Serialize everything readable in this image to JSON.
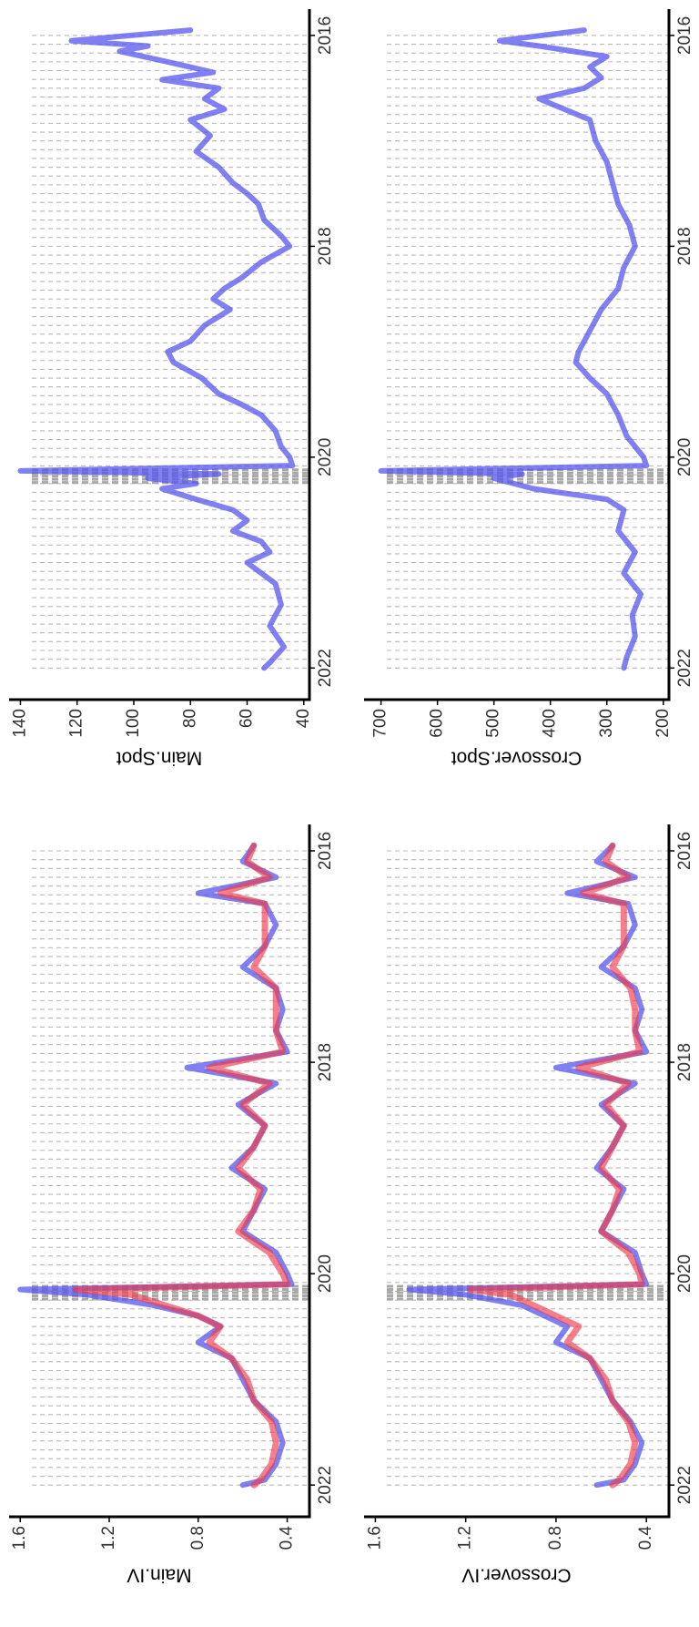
{
  "colors": {
    "blue_series": "#5555ee",
    "red_series": "#ee3a4a",
    "gridline": "#b8b8b8",
    "axis": "#000000",
    "background": "#ffffff"
  },
  "chart_data": [
    {
      "panel": "top-left",
      "type": "line",
      "ylabel": "Main.Spot",
      "xlabel": "",
      "xlim": [
        2015.75,
        2022.3
      ],
      "ylim": [
        38,
        144
      ],
      "x_ticks": [
        "2016",
        "2018",
        "2020",
        "2022"
      ],
      "y_ticks": [
        "140",
        "120",
        "100",
        "80",
        "60",
        "40"
      ],
      "grid": "vertical dashed lines",
      "series": [
        {
          "color": "#5555ee",
          "x": [
            2015.95,
            2016.05,
            2016.1,
            2016.15,
            2016.25,
            2016.35,
            2016.42,
            2016.5,
            2016.6,
            2016.7,
            2016.8,
            2016.95,
            2017.1,
            2017.25,
            2017.4,
            2017.5,
            2017.6,
            2017.75,
            2017.9,
            2018.0,
            2018.15,
            2018.3,
            2018.4,
            2018.5,
            2018.6,
            2018.75,
            2018.9,
            2019.0,
            2019.1,
            2019.25,
            2019.4,
            2019.5,
            2019.6,
            2019.75,
            2019.9,
            2020.0,
            2020.08,
            2020.13,
            2020.16,
            2020.2,
            2020.25,
            2020.3,
            2020.4,
            2020.5,
            2020.6,
            2020.7,
            2020.8,
            2020.9,
            2021.0,
            2021.2,
            2021.4,
            2021.6,
            2021.8,
            2021.95,
            2022.0
          ],
          "y": [
            80,
            122,
            95,
            105,
            88,
            72,
            90,
            70,
            75,
            68,
            80,
            73,
            78,
            70,
            65,
            60,
            56,
            54,
            48,
            45,
            55,
            62,
            68,
            72,
            66,
            75,
            80,
            88,
            86,
            76,
            70,
            62,
            55,
            50,
            48,
            45,
            44,
            140,
            70,
            95,
            78,
            90,
            78,
            65,
            60,
            65,
            55,
            52,
            60,
            50,
            48,
            52,
            47,
            52,
            54
          ]
        }
      ]
    },
    {
      "panel": "top-right",
      "type": "line",
      "ylabel": "Crossover.Spot",
      "xlabel": "",
      "xlim": [
        2015.75,
        2022.3
      ],
      "ylim": [
        190,
        730
      ],
      "x_ticks": [
        "2016",
        "2018",
        "2020",
        "2022"
      ],
      "y_ticks": [
        "700",
        "600",
        "500",
        "400",
        "300",
        "200"
      ],
      "grid": "vertical dashed lines",
      "series": [
        {
          "color": "#5555ee",
          "x": [
            2015.95,
            2016.05,
            2016.1,
            2016.2,
            2016.3,
            2016.4,
            2016.5,
            2016.6,
            2016.8,
            2017.0,
            2017.2,
            2017.4,
            2017.6,
            2017.8,
            2018.0,
            2018.2,
            2018.4,
            2018.6,
            2018.8,
            2019.0,
            2019.1,
            2019.25,
            2019.4,
            2019.6,
            2019.8,
            2020.0,
            2020.08,
            2020.13,
            2020.16,
            2020.2,
            2020.3,
            2020.4,
            2020.5,
            2020.7,
            2020.9,
            2021.1,
            2021.3,
            2021.5,
            2021.7,
            2021.9,
            2022.0
          ],
          "y": [
            340,
            490,
            420,
            300,
            330,
            310,
            340,
            420,
            330,
            320,
            300,
            290,
            280,
            260,
            250,
            270,
            280,
            310,
            330,
            350,
            355,
            330,
            300,
            280,
            265,
            235,
            230,
            700,
            450,
            500,
            430,
            300,
            270,
            280,
            250,
            270,
            240,
            255,
            250,
            265,
            270
          ]
        }
      ]
    },
    {
      "panel": "bottom-left",
      "type": "line",
      "ylabel": "Main.IV",
      "xlabel": "",
      "xlim": [
        2015.75,
        2022.3
      ],
      "ylim": [
        0.3,
        1.65
      ],
      "x_ticks": [
        "2016",
        "2018",
        "2020",
        "2022"
      ],
      "y_ticks": [
        "1.6",
        "1.2",
        "0.8",
        "0.4"
      ],
      "grid": "vertical dashed lines",
      "series": [
        {
          "color": "#5555ee",
          "x": [
            2015.95,
            2016.1,
            2016.25,
            2016.4,
            2016.5,
            2016.7,
            2016.9,
            2017.1,
            2017.3,
            2017.5,
            2017.7,
            2017.9,
            2018.05,
            2018.2,
            2018.4,
            2018.6,
            2018.8,
            2019.0,
            2019.2,
            2019.4,
            2019.6,
            2019.8,
            2020.0,
            2020.1,
            2020.15,
            2020.2,
            2020.3,
            2020.4,
            2020.5,
            2020.65,
            2020.8,
            2021.0,
            2021.2,
            2021.4,
            2021.6,
            2021.8,
            2021.95,
            2022.0
          ],
          "y": [
            0.55,
            0.6,
            0.45,
            0.8,
            0.5,
            0.45,
            0.5,
            0.6,
            0.45,
            0.42,
            0.45,
            0.4,
            0.85,
            0.45,
            0.62,
            0.5,
            0.55,
            0.65,
            0.5,
            0.55,
            0.6,
            0.45,
            0.4,
            0.38,
            1.6,
            1.3,
            1.0,
            0.8,
            0.7,
            0.8,
            0.65,
            0.6,
            0.55,
            0.45,
            0.42,
            0.45,
            0.5,
            0.6
          ]
        },
        {
          "color": "#ee3a4a",
          "x": [
            2015.95,
            2016.1,
            2016.25,
            2016.4,
            2016.5,
            2016.7,
            2016.9,
            2017.1,
            2017.3,
            2017.5,
            2017.7,
            2017.9,
            2018.05,
            2018.2,
            2018.4,
            2018.6,
            2018.8,
            2019.0,
            2019.2,
            2019.4,
            2019.6,
            2019.8,
            2020.0,
            2020.1,
            2020.15,
            2020.2,
            2020.3,
            2020.4,
            2020.5,
            2020.65,
            2020.8,
            2021.0,
            2021.2,
            2021.4,
            2021.6,
            2021.8,
            2021.95,
            2022.0
          ],
          "y": [
            0.55,
            0.58,
            0.48,
            0.7,
            0.5,
            0.5,
            0.5,
            0.55,
            0.45,
            0.45,
            0.45,
            0.42,
            0.75,
            0.48,
            0.6,
            0.5,
            0.55,
            0.62,
            0.52,
            0.55,
            0.62,
            0.48,
            0.42,
            0.4,
            1.35,
            1.1,
            0.95,
            0.8,
            0.7,
            0.75,
            0.65,
            0.58,
            0.55,
            0.47,
            0.45,
            0.47,
            0.52,
            0.55
          ]
        }
      ]
    },
    {
      "panel": "bottom-right",
      "type": "line",
      "ylabel": "Crossover.IV",
      "xlabel": "",
      "xlim": [
        2015.75,
        2022.3
      ],
      "ylim": [
        0.3,
        1.65
      ],
      "x_ticks": [
        "2016",
        "2018",
        "2020",
        "2022"
      ],
      "y_ticks": [
        "1.6",
        "1.2",
        "0.8",
        "0.4"
      ],
      "grid": "vertical dashed lines",
      "series": [
        {
          "color": "#5555ee",
          "x": [
            2015.95,
            2016.1,
            2016.25,
            2016.4,
            2016.5,
            2016.7,
            2016.9,
            2017.1,
            2017.3,
            2017.5,
            2017.7,
            2017.9,
            2018.05,
            2018.2,
            2018.4,
            2018.6,
            2018.8,
            2019.0,
            2019.2,
            2019.4,
            2019.6,
            2019.8,
            2020.0,
            2020.1,
            2020.15,
            2020.2,
            2020.3,
            2020.4,
            2020.5,
            2020.65,
            2020.8,
            2021.0,
            2021.2,
            2021.4,
            2021.6,
            2021.8,
            2021.95,
            2022.0
          ],
          "y": [
            0.55,
            0.62,
            0.45,
            0.75,
            0.48,
            0.45,
            0.5,
            0.6,
            0.45,
            0.42,
            0.45,
            0.4,
            0.8,
            0.45,
            0.6,
            0.5,
            0.55,
            0.62,
            0.5,
            0.55,
            0.6,
            0.45,
            0.42,
            0.4,
            1.45,
            1.2,
            0.95,
            0.85,
            0.75,
            0.8,
            0.65,
            0.6,
            0.55,
            0.47,
            0.42,
            0.45,
            0.5,
            0.62
          ]
        },
        {
          "color": "#ee3a4a",
          "x": [
            2015.95,
            2016.1,
            2016.25,
            2016.4,
            2016.5,
            2016.7,
            2016.9,
            2017.1,
            2017.3,
            2017.5,
            2017.7,
            2017.9,
            2018.05,
            2018.2,
            2018.4,
            2018.6,
            2018.8,
            2019.0,
            2019.2,
            2019.4,
            2019.6,
            2019.8,
            2020.0,
            2020.1,
            2020.15,
            2020.2,
            2020.3,
            2020.4,
            2020.5,
            2020.65,
            2020.8,
            2021.0,
            2021.2,
            2021.4,
            2021.6,
            2021.8,
            2021.95,
            2022.0
          ],
          "y": [
            0.55,
            0.58,
            0.48,
            0.68,
            0.5,
            0.5,
            0.5,
            0.55,
            0.47,
            0.45,
            0.45,
            0.43,
            0.7,
            0.48,
            0.58,
            0.5,
            0.55,
            0.6,
            0.52,
            0.55,
            0.6,
            0.48,
            0.43,
            0.42,
            1.18,
            1.0,
            0.9,
            0.8,
            0.7,
            0.75,
            0.65,
            0.58,
            0.55,
            0.48,
            0.45,
            0.47,
            0.52,
            0.55
          ]
        }
      ]
    }
  ]
}
